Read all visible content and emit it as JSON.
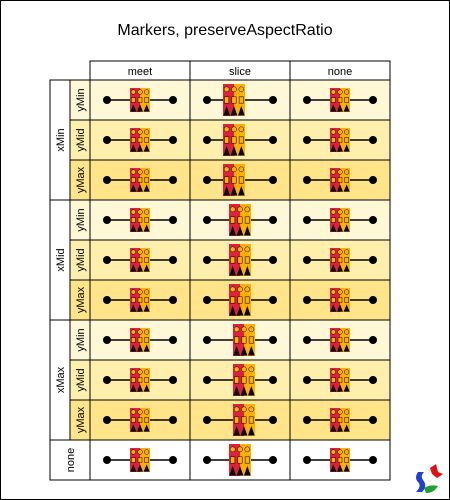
{
  "title": "Markers, preserveAspectRatio",
  "columns": [
    "meet",
    "slice",
    "none"
  ],
  "groups": [
    {
      "label": "xMin",
      "rows": [
        "yMin",
        "yMid",
        "yMax"
      ]
    },
    {
      "label": "xMid",
      "rows": [
        "yMin",
        "yMid",
        "yMax"
      ]
    },
    {
      "label": "xMax",
      "rows": [
        "yMin",
        "yMid",
        "yMax"
      ]
    },
    {
      "label": "none",
      "rows": []
    }
  ],
  "colors": {
    "row_light": "#fff8d6",
    "row_mid": "#ffefad",
    "row_dark": "#ffe48a",
    "marker_red": "#e02040",
    "marker_orange": "#ffb000",
    "marker_black": "#000000",
    "logo_red": "#e01010",
    "logo_blue": "#2040d0",
    "logo_green": "#20a030"
  },
  "logo_icon": "batik-logo-icon"
}
